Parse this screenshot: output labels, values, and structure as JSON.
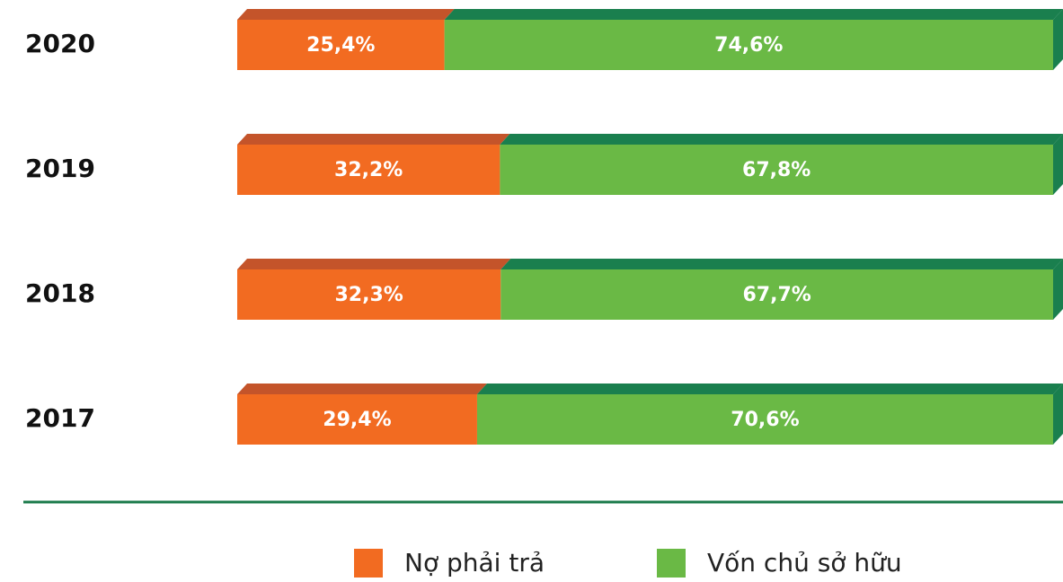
{
  "chart_data": {
    "type": "stacked-bar-horizontal",
    "categories": [
      "2020",
      "2019",
      "2018",
      "2017"
    ],
    "series": [
      {
        "name": "Nợ phải trả",
        "color": "#f26b21",
        "top_color": "#c4542a",
        "values": [
          25.4,
          32.2,
          32.3,
          29.4
        ],
        "value_labels": [
          "25,4%",
          "32,2%",
          "32,3%",
          "29,4%"
        ]
      },
      {
        "name": "Vốn chủ sở hữu",
        "color": "#6ab945",
        "top_color": "#1a7f4e",
        "values": [
          74.6,
          67.8,
          67.7,
          70.6
        ],
        "value_labels": [
          "74,6%",
          "67,8%",
          "67,7%",
          "70,6%"
        ]
      }
    ]
  }
}
